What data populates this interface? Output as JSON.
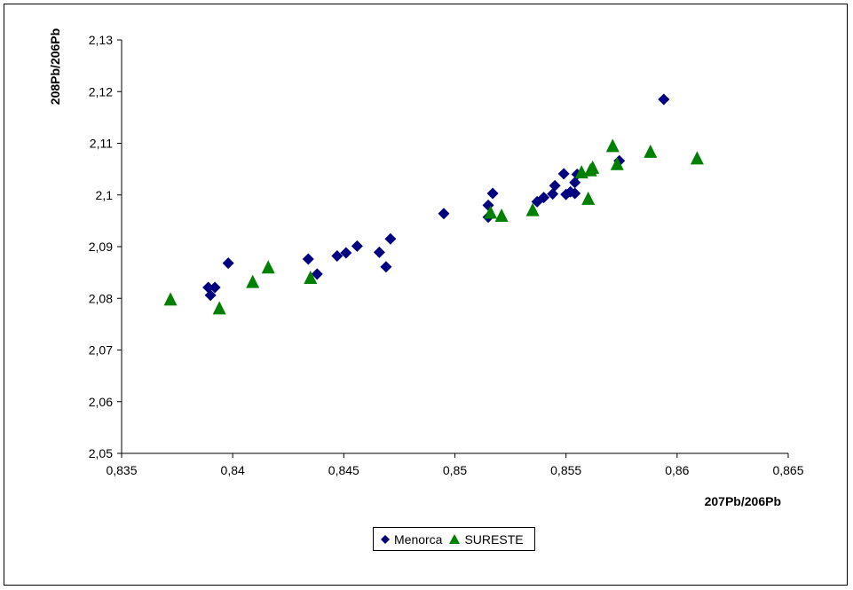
{
  "chart_data": {
    "type": "scatter",
    "title": "",
    "xlabel": "207Pb/206Pb",
    "ylabel": "208Pb/206Pb",
    "xlim": [
      0.835,
      0.865
    ],
    "ylim": [
      2.05,
      2.13
    ],
    "xticks": [
      0.835,
      0.84,
      0.845,
      0.85,
      0.855,
      0.86,
      0.865
    ],
    "xtick_labels": [
      "0,835",
      "0,84",
      "0,845",
      "0,85",
      "0,855",
      "0,86",
      "0,865"
    ],
    "yticks": [
      2.05,
      2.06,
      2.07,
      2.08,
      2.09,
      2.1,
      2.11,
      2.12,
      2.13
    ],
    "ytick_labels": [
      "2,05",
      "2,06",
      "2,07",
      "2,08",
      "2,09",
      "2,1",
      "2,11",
      "2,12",
      "2,13"
    ],
    "grid": false,
    "legend_position": "bottom",
    "series": [
      {
        "name": "Menorca",
        "marker": "diamond",
        "color": "#000080",
        "points": [
          [
            0.8389,
            2.0821
          ],
          [
            0.839,
            2.0806
          ],
          [
            0.8392,
            2.0821
          ],
          [
            0.8398,
            2.0868
          ],
          [
            0.8434,
            2.0876
          ],
          [
            0.8438,
            2.0847
          ],
          [
            0.8447,
            2.0882
          ],
          [
            0.8451,
            2.0888
          ],
          [
            0.8456,
            2.0901
          ],
          [
            0.8466,
            2.0889
          ],
          [
            0.8469,
            2.0861
          ],
          [
            0.8471,
            2.0915
          ],
          [
            0.8495,
            2.0964
          ],
          [
            0.8515,
            2.0957
          ],
          [
            0.8515,
            2.098
          ],
          [
            0.8517,
            2.1003
          ],
          [
            0.8537,
            2.0987
          ],
          [
            0.854,
            2.0995
          ],
          [
            0.8544,
            2.1002
          ],
          [
            0.8545,
            2.1018
          ],
          [
            0.8549,
            2.1041
          ],
          [
            0.855,
            2.1001
          ],
          [
            0.8552,
            2.1006
          ],
          [
            0.8554,
            2.1024
          ],
          [
            0.8554,
            2.1003
          ],
          [
            0.8555,
            2.104
          ],
          [
            0.8574,
            2.1066
          ],
          [
            0.8594,
            2.1185
          ]
        ]
      },
      {
        "name": "SURESTE",
        "marker": "triangle",
        "color": "#008000",
        "points": [
          [
            0.8372,
            2.0798
          ],
          [
            0.8394,
            2.0781
          ],
          [
            0.8409,
            2.0832
          ],
          [
            0.8416,
            2.086
          ],
          [
            0.8435,
            2.084
          ],
          [
            0.8516,
            2.0966
          ],
          [
            0.8521,
            2.096
          ],
          [
            0.8535,
            2.0971
          ],
          [
            0.8557,
            2.1044
          ],
          [
            0.856,
            2.0993
          ],
          [
            0.8561,
            2.1048
          ],
          [
            0.8562,
            2.1053
          ],
          [
            0.8571,
            2.1095
          ],
          [
            0.8573,
            2.106
          ],
          [
            0.8588,
            2.1084
          ],
          [
            0.8609,
            2.1071
          ]
        ]
      }
    ]
  }
}
